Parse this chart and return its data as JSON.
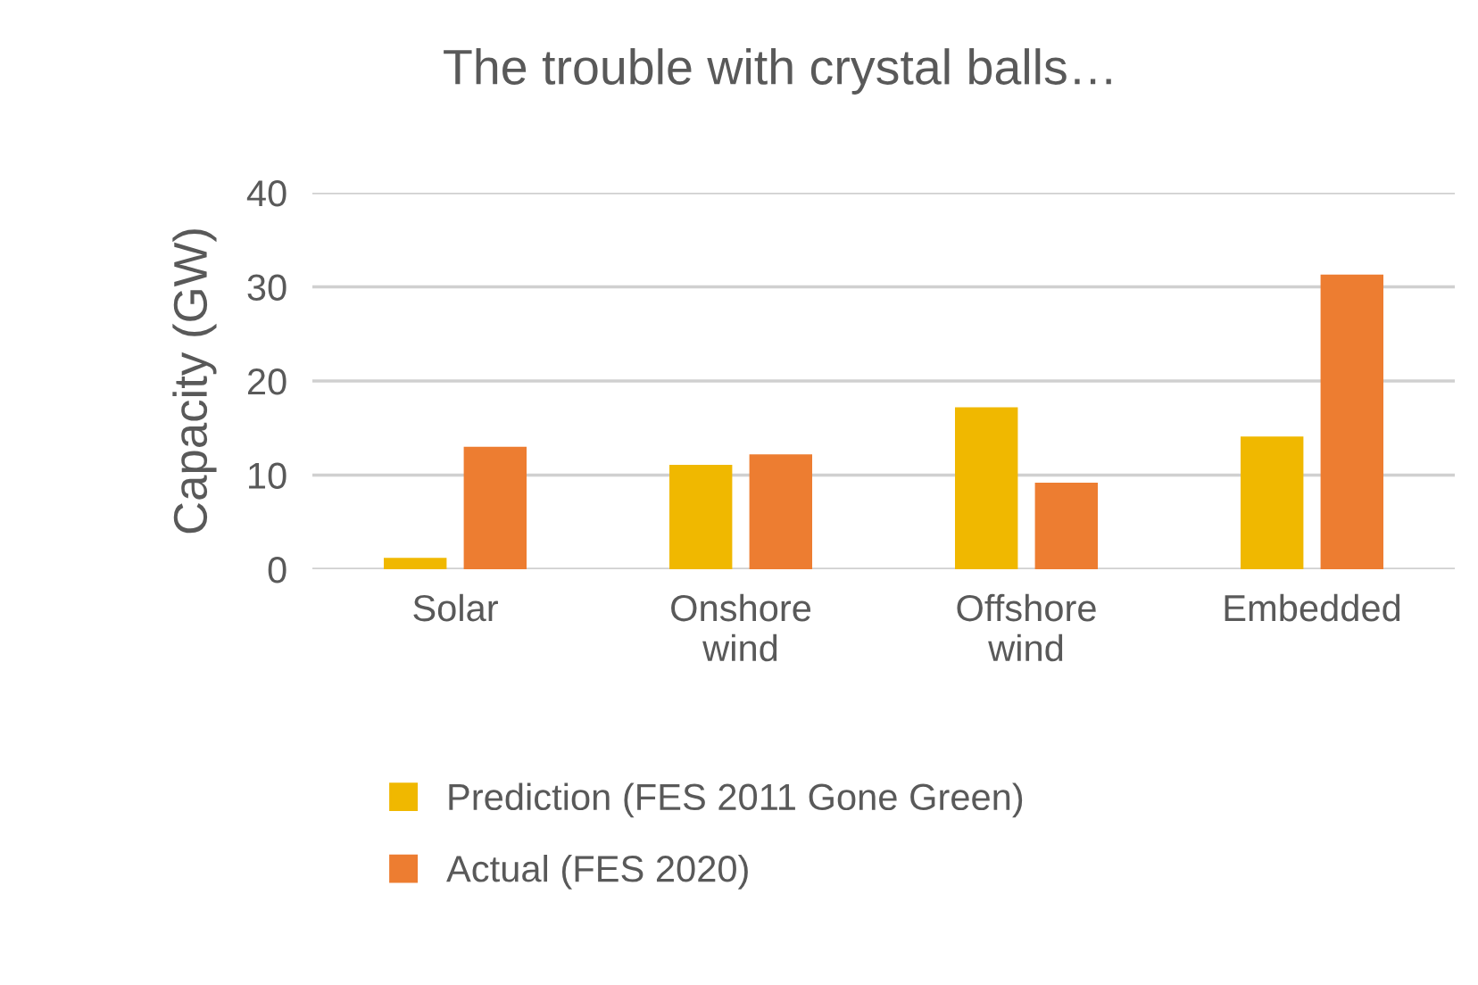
{
  "chart_data": {
    "type": "bar",
    "title": "The trouble with crystal balls…",
    "ylabel": "Capacity (GW)",
    "categories": [
      "Solar",
      "Onshore\nwind",
      "Offshore\nwind",
      "Embedded"
    ],
    "series": [
      {
        "name": "Prediction (FES 2011 Gone Green)",
        "color": "#f0b800",
        "values": [
          1.2,
          11.1,
          17.2,
          14.1
        ]
      },
      {
        "name": "Actual (FES 2020)",
        "color": "#ed7d31",
        "values": [
          13,
          12.2,
          9.2,
          31.3
        ]
      }
    ],
    "ylim": [
      0,
      40
    ],
    "yticks": [
      0,
      10,
      20,
      30,
      40
    ],
    "grid": "y",
    "legend": "bottom"
  }
}
